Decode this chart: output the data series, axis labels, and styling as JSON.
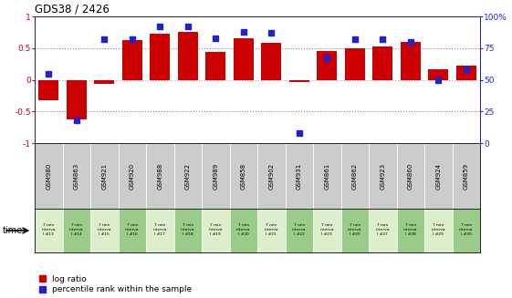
{
  "title": "GDS38 / 2426",
  "samples": [
    "GSM980",
    "GSM863",
    "GSM921",
    "GSM920",
    "GSM988",
    "GSM922",
    "GSM989",
    "GSM858",
    "GSM902",
    "GSM931",
    "GSM861",
    "GSM862",
    "GSM923",
    "GSM860",
    "GSM924",
    "GSM859"
  ],
  "time_labels": [
    "7 min\ninterva\nl #13",
    "7 min\ninterva\nl #14",
    "7 min\ninterva\nl #15",
    "7 min\ninterva\nl #16",
    "7 min\ninterva\nl #17",
    "7 min\ninterva\nl #18",
    "7 min\ninterva\nl #19",
    "7 min\ninterva\nl #20",
    "7 min\ninterva\nl #21",
    "7 min\ninterva\nl #22",
    "7 min\ninterva\nl #23",
    "7 min\ninterva\nl #25",
    "7 min\ninterva\nl #27",
    "7 min\ninterva\nl #28",
    "7 min\ninterva\nl #29",
    "7 min\ninterva\nl #30"
  ],
  "log_ratio": [
    -0.33,
    -0.62,
    -0.07,
    0.62,
    0.72,
    0.75,
    0.44,
    0.65,
    0.58,
    -0.04,
    0.45,
    0.5,
    0.52,
    0.6,
    0.17,
    0.22
  ],
  "percentile": [
    55,
    18,
    82,
    82,
    92,
    92,
    83,
    88,
    87,
    8,
    67,
    82,
    82,
    80,
    50,
    58
  ],
  "bar_color": "#cc0000",
  "dot_color": "#2222cc",
  "ylim_left": [
    -1.0,
    1.0
  ],
  "ylim_right": [
    0,
    100
  ],
  "yticks_left": [
    -1,
    -0.5,
    0,
    0.5,
    1
  ],
  "ytick_labels_left": [
    "-1",
    "-0.5",
    "0",
    "0.5",
    "1"
  ],
  "yticks_right": [
    0,
    25,
    50,
    75,
    100
  ],
  "ytick_labels_right": [
    "0",
    "25",
    "50",
    "75",
    "100%"
  ],
  "zero_line_color": "#ff8888",
  "dotted_line_color": "#888888",
  "bg_color_main": "#ffffff",
  "bg_color_gsm": "#cccccc",
  "bg_color_time_light": "#ddeecc",
  "bg_color_time_dark": "#99cc88",
  "legend_log_ratio": "log ratio",
  "legend_percentile": "percentile rank within the sample",
  "time_label": "time"
}
